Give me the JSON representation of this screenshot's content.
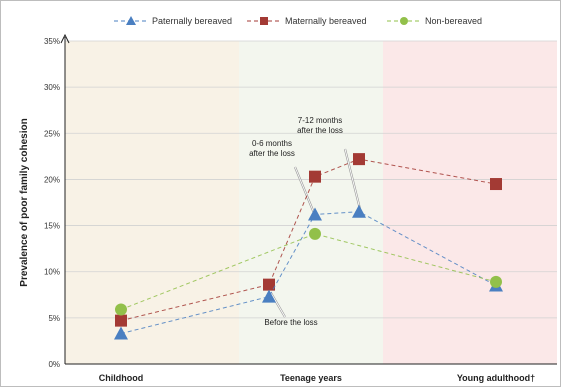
{
  "chart_data": {
    "type": "line",
    "title": "",
    "ylabel": "Prevalence of poor family cohesion",
    "xlabel": "",
    "ylim": [
      0,
      35
    ],
    "yticks": [
      "0%",
      "5%",
      "10%",
      "15%",
      "20%",
      "25%",
      "30%",
      "35%"
    ],
    "grid": true,
    "legend_position": "top",
    "x_positions": [
      "Childhood",
      "Teenage years: before the loss",
      "Teenage years: 0-6 months after the loss",
      "Teenage years: 7-12 months after the loss",
      "Young adulthood"
    ],
    "phases": [
      {
        "label": "Childhood",
        "color": "#f8f2e6"
      },
      {
        "label": "Teenage years",
        "color": "#f3f6ee"
      },
      {
        "label": "Young adulthood†",
        "color": "#fbe8e8"
      }
    ],
    "series": [
      {
        "name": "Paternally bereaved",
        "color": "#4a7fc1",
        "marker": "triangle",
        "values": [
          3.3,
          7.3,
          16.2,
          16.5,
          8.5
        ]
      },
      {
        "name": "Maternally bereaved",
        "color": "#a33a34",
        "marker": "square",
        "values": [
          4.7,
          8.6,
          20.3,
          22.2,
          19.5
        ]
      },
      {
        "name": "Non-bereaved",
        "color": "#92c04a",
        "marker": "circle",
        "values": [
          5.9,
          null,
          14.1,
          null,
          8.9
        ]
      }
    ],
    "annotations": [
      {
        "lines": [
          "7-12 months",
          "after the loss"
        ]
      },
      {
        "lines": [
          "0-6 months",
          "after the loss"
        ]
      },
      {
        "lines": [
          "Before the loss"
        ]
      }
    ]
  }
}
